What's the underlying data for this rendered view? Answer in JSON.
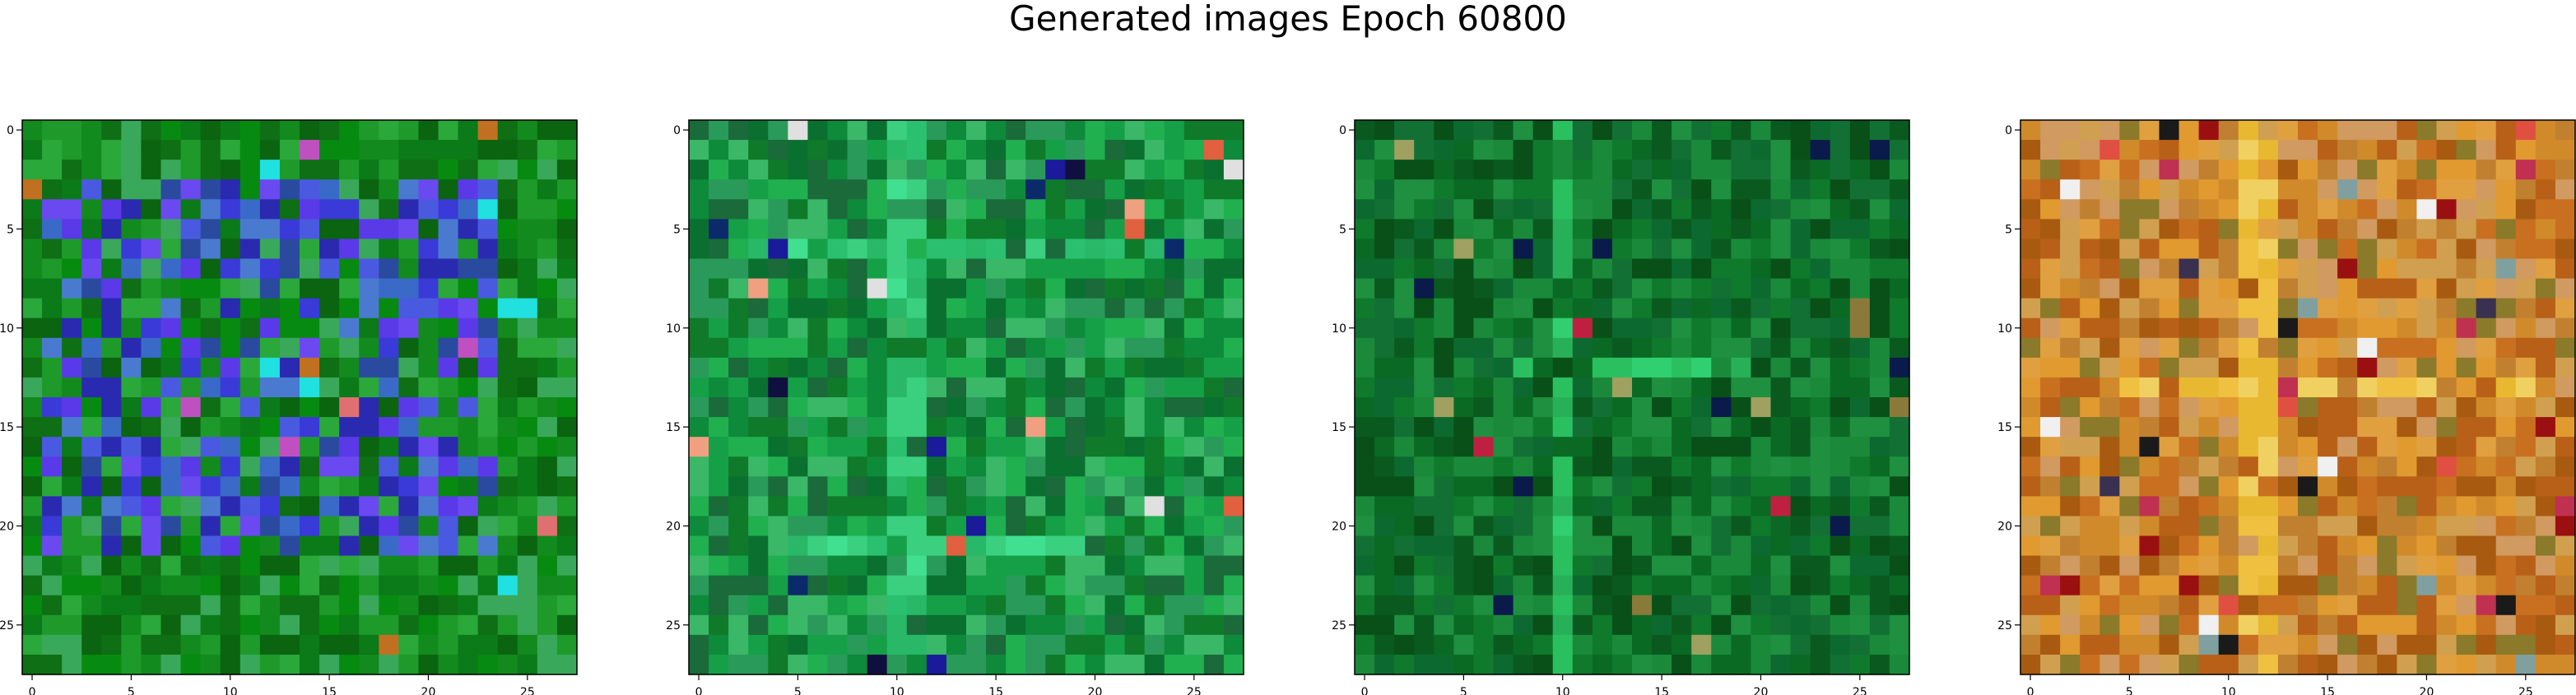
{
  "figure": {
    "title": "Generated images Epoch 60800"
  },
  "axes": {
    "xticks": [
      "0",
      "5",
      "10",
      "15",
      "20",
      "25"
    ],
    "yticks": [
      "0",
      "5",
      "10",
      "15",
      "20",
      "25"
    ],
    "grid_size": 28
  },
  "panels": [
    {
      "name": "generated-image-1",
      "palette": {
        "background": [
          "#0b7a18",
          "#138a1e",
          "#1e9a2a",
          "#0f6f14",
          "#2aa83a",
          "#078a10",
          "#3aa85a",
          "#0a6410"
        ],
        "motif": [
          "#3a3ad8",
          "#4a5ae0",
          "#2a2ab0",
          "#5a3ae8",
          "#3a6ac8",
          "#6a4af0",
          "#2a4aa0",
          "#4a7ad0"
        ],
        "accent": [
          "#c050c0",
          "#e07070",
          "#f0a0a0",
          "#20e0e0",
          "#c07020"
        ]
      }
    },
    {
      "name": "generated-image-2",
      "palette": {
        "background": [
          "#0d8a3a",
          "#15a048",
          "#0a7030",
          "#20b050",
          "#2a9a5a",
          "#0f7a2a",
          "#1a6a3a",
          "#3ab868"
        ],
        "motif": [
          "#2ac070",
          "#3ad080",
          "#40e090",
          "#28b868"
        ],
        "accent": [
          "#0a2a6a",
          "#101040",
          "#e06040",
          "#f0a080",
          "#1a1a9a",
          "#e0e0e0"
        ]
      }
    },
    {
      "name": "generated-image-3",
      "palette": {
        "background": [
          "#0a6a24",
          "#0f7a2c",
          "#137034",
          "#0a5a20",
          "#1a8a3a",
          "#085018",
          "#1e9040",
          "#0c6a30"
        ],
        "motif": [
          "#2ac060",
          "#30d070",
          "#28b058"
        ],
        "accent": [
          "#8a7a3a",
          "#c02040",
          "#0a1a4a",
          "#a0a060"
        ]
      }
    },
    {
      "name": "generated-image-4",
      "palette": {
        "background": [
          "#d08a2a",
          "#c87020",
          "#e0a040",
          "#b86018",
          "#d0a050",
          "#a85a10",
          "#e09a30",
          "#c08030",
          "#d09a60",
          "#8a7a2a"
        ],
        "motif": [
          "#f0c040",
          "#f0d060",
          "#e8b830"
        ],
        "accent": [
          "#9a1010",
          "#c03050",
          "#3a3050",
          "#80a0a0",
          "#f0f0f0",
          "#1a1a1a",
          "#e05040"
        ]
      }
    }
  ]
}
